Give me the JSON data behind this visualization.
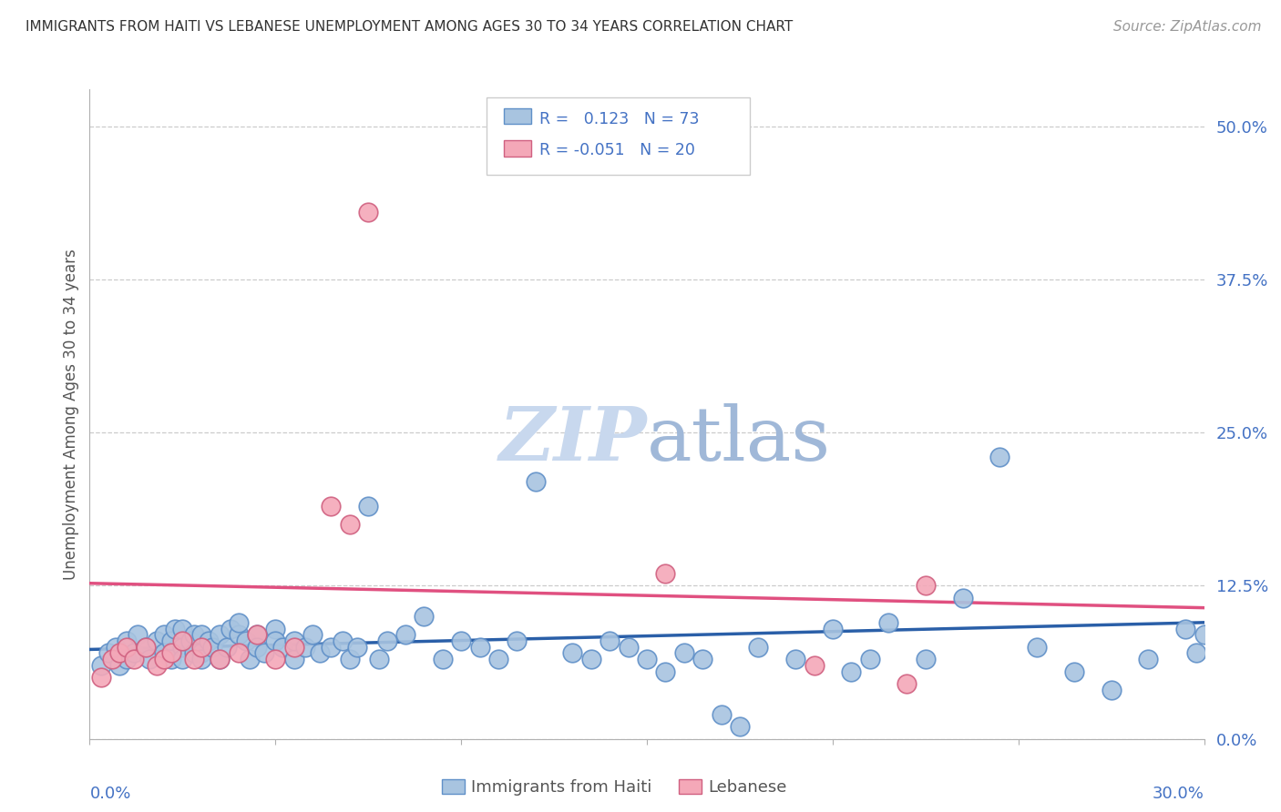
{
  "title": "IMMIGRANTS FROM HAITI VS LEBANESE UNEMPLOYMENT AMONG AGES 30 TO 34 YEARS CORRELATION CHART",
  "source": "Source: ZipAtlas.com",
  "ylabel": "Unemployment Among Ages 30 to 34 years",
  "ytick_labels": [
    "0.0%",
    "12.5%",
    "25.0%",
    "37.5%",
    "50.0%"
  ],
  "ytick_values": [
    0.0,
    0.125,
    0.25,
    0.375,
    0.5
  ],
  "xlim": [
    0.0,
    0.3
  ],
  "ylim": [
    0.0,
    0.53
  ],
  "color_haiti": "#a8c4e0",
  "color_lebanese": "#f4a8b8",
  "color_haiti_edge": "#6090c8",
  "color_lebanese_edge": "#d06080",
  "color_haiti_line": "#2a5fa8",
  "color_lebanese_line": "#e05080",
  "color_text_blue": "#4472c4",
  "color_axis": "#b0b0b0",
  "color_grid": "#cccccc",
  "watermark_color": "#c8d8ee",
  "haiti_x": [
    0.003,
    0.005,
    0.007,
    0.008,
    0.01,
    0.01,
    0.012,
    0.013,
    0.015,
    0.016,
    0.018,
    0.02,
    0.02,
    0.022,
    0.022,
    0.023,
    0.025,
    0.025,
    0.025,
    0.027,
    0.028,
    0.028,
    0.03,
    0.03,
    0.03,
    0.032,
    0.033,
    0.035,
    0.035,
    0.037,
    0.038,
    0.04,
    0.04,
    0.042,
    0.043,
    0.045,
    0.045,
    0.047,
    0.05,
    0.05,
    0.052,
    0.055,
    0.055,
    0.058,
    0.06,
    0.062,
    0.065,
    0.068,
    0.07,
    0.072,
    0.075,
    0.078,
    0.08,
    0.085,
    0.09,
    0.095,
    0.1,
    0.105,
    0.11,
    0.115,
    0.12,
    0.13,
    0.135,
    0.14,
    0.145,
    0.15,
    0.155,
    0.16,
    0.165,
    0.17,
    0.175,
    0.18,
    0.19,
    0.2,
    0.205,
    0.21,
    0.215,
    0.225,
    0.235,
    0.245,
    0.255,
    0.265,
    0.275,
    0.285,
    0.295,
    0.298,
    0.3
  ],
  "haiti_y": [
    0.06,
    0.07,
    0.075,
    0.06,
    0.065,
    0.08,
    0.07,
    0.085,
    0.075,
    0.065,
    0.08,
    0.085,
    0.07,
    0.08,
    0.065,
    0.09,
    0.075,
    0.09,
    0.065,
    0.08,
    0.07,
    0.085,
    0.07,
    0.065,
    0.085,
    0.08,
    0.075,
    0.085,
    0.065,
    0.075,
    0.09,
    0.085,
    0.095,
    0.08,
    0.065,
    0.085,
    0.075,
    0.07,
    0.09,
    0.08,
    0.075,
    0.065,
    0.08,
    0.075,
    0.085,
    0.07,
    0.075,
    0.08,
    0.065,
    0.075,
    0.19,
    0.065,
    0.08,
    0.085,
    0.1,
    0.065,
    0.08,
    0.075,
    0.065,
    0.08,
    0.21,
    0.07,
    0.065,
    0.08,
    0.075,
    0.065,
    0.055,
    0.07,
    0.065,
    0.02,
    0.01,
    0.075,
    0.065,
    0.09,
    0.055,
    0.065,
    0.095,
    0.065,
    0.115,
    0.23,
    0.075,
    0.055,
    0.04,
    0.065,
    0.09,
    0.07,
    0.085
  ],
  "lebanese_x": [
    0.003,
    0.006,
    0.008,
    0.01,
    0.012,
    0.015,
    0.018,
    0.02,
    0.022,
    0.025,
    0.028,
    0.03,
    0.035,
    0.04,
    0.045,
    0.05,
    0.055,
    0.065,
    0.07,
    0.075,
    0.155,
    0.195,
    0.22,
    0.225
  ],
  "lebanese_y": [
    0.05,
    0.065,
    0.07,
    0.075,
    0.065,
    0.075,
    0.06,
    0.065,
    0.07,
    0.08,
    0.065,
    0.075,
    0.065,
    0.07,
    0.085,
    0.065,
    0.075,
    0.19,
    0.175,
    0.43,
    0.135,
    0.06,
    0.045,
    0.125
  ],
  "haiti_trend_x": [
    0.0,
    0.3
  ],
  "haiti_trend_y": [
    0.073,
    0.095
  ],
  "lebanese_trend_x": [
    0.0,
    0.3
  ],
  "lebanese_trend_y": [
    0.127,
    0.107
  ]
}
